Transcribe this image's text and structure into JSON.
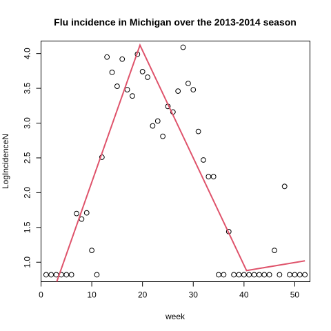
{
  "chart_data": {
    "type": "scatter",
    "title": "Flu incidence in Michigan over the 2013-2014 season",
    "xlabel": "week",
    "ylabel": "LogIncidenceN",
    "xlim": [
      0,
      53
    ],
    "ylim": [
      0.72,
      4.18
    ],
    "xticks": [
      0,
      10,
      20,
      30,
      40,
      50
    ],
    "yticks": [
      1.0,
      1.5,
      2.0,
      2.5,
      3.0,
      3.5,
      4.0
    ],
    "ytick_labels": [
      "1.0",
      "1.5",
      "2.0",
      "2.5",
      "3.0",
      "3.5",
      "4.0"
    ],
    "points": {
      "x": [
        1,
        2,
        3,
        4,
        5,
        6,
        7,
        8,
        9,
        10,
        11,
        12,
        13,
        14,
        15,
        16,
        17,
        18,
        19,
        20,
        21,
        22,
        23,
        24,
        25,
        26,
        27,
        28,
        29,
        30,
        31,
        32,
        33,
        34,
        35,
        36,
        37,
        38,
        39,
        40,
        41,
        42,
        43,
        44,
        45,
        46,
        47,
        48,
        49,
        50,
        51,
        52
      ],
      "y": [
        0.82,
        0.82,
        0.82,
        0.82,
        0.82,
        0.82,
        1.7,
        1.62,
        1.71,
        1.17,
        0.82,
        2.51,
        3.95,
        3.73,
        3.53,
        3.92,
        3.48,
        3.39,
        3.99,
        3.74,
        3.66,
        2.96,
        3.03,
        2.81,
        3.24,
        3.16,
        3.46,
        4.09,
        3.57,
        3.48,
        2.88,
        2.47,
        2.23,
        2.23,
        0.82,
        0.82,
        1.44,
        0.82,
        0.82,
        0.82,
        0.82,
        0.82,
        0.82,
        0.82,
        0.82,
        1.17,
        0.82,
        2.09,
        0.82,
        0.82,
        0.82,
        0.82
      ]
    },
    "fit_line": {
      "x": [
        3.1,
        19.5,
        40.5,
        52
      ],
      "y": [
        0.72,
        4.12,
        0.88,
        1.02
      ],
      "color": "#DF536B"
    },
    "grid": false
  }
}
